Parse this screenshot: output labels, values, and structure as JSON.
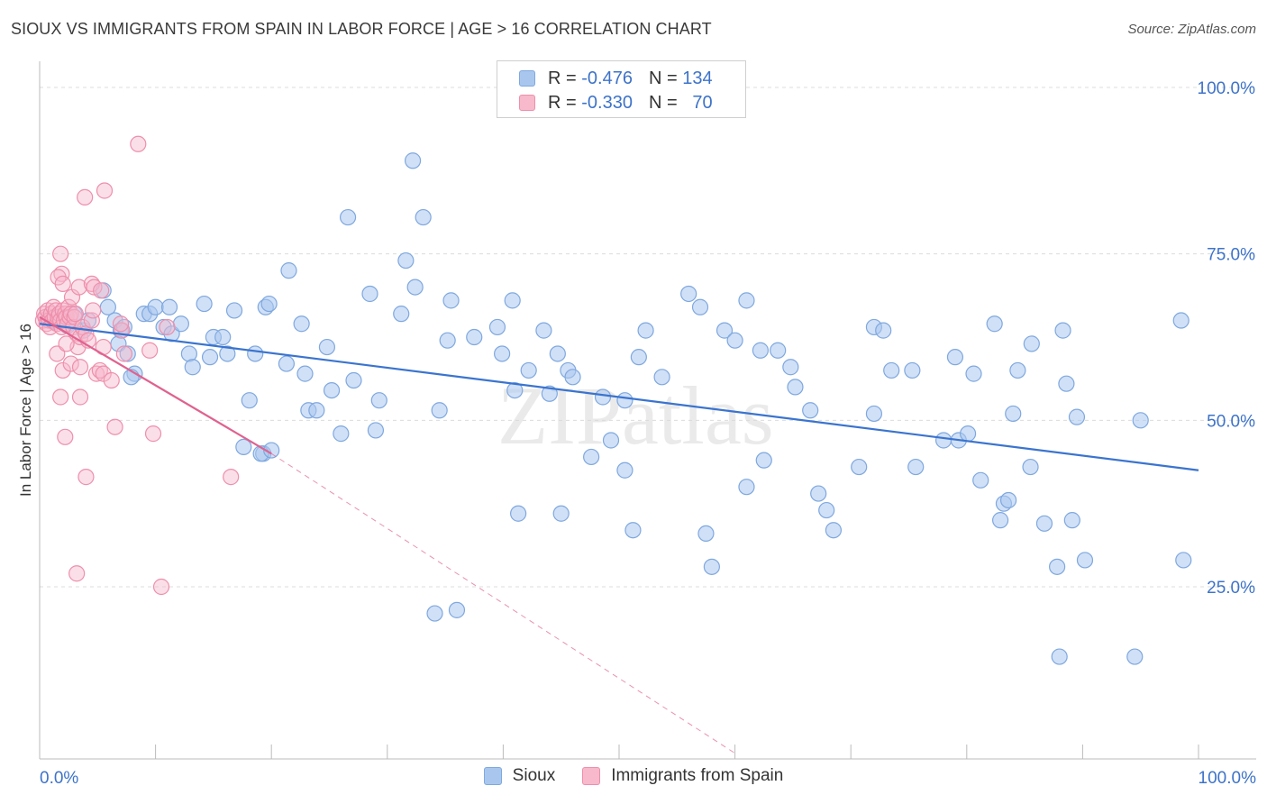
{
  "title": "SIOUX VS IMMIGRANTS FROM SPAIN IN LABOR FORCE | AGE > 16 CORRELATION CHART",
  "source": "Source: ZipAtlas.com",
  "watermark": "ZIPatlas",
  "legend_top": {
    "rows": [
      {
        "r_label": "R =",
        "r_value": "-0.476",
        "n_label": "N =",
        "n_value": "134",
        "color": "#a9c7ee",
        "border": "#7fa8df"
      },
      {
        "r_label": "R =",
        "r_value": "-0.330",
        "n_label": "N =",
        "n_value": "70",
        "color": "#f7b9cb",
        "border": "#ee8fac"
      }
    ]
  },
  "legend_bottom": [
    {
      "label": "Sioux",
      "color": "#a9c7ee",
      "border": "#7fa8df"
    },
    {
      "label": "Immigrants from Spain",
      "color": "#f7b9cb",
      "border": "#ee8fac"
    }
  ],
  "colors": {
    "sioux": "#3a74cf",
    "spain": "#e0628f",
    "grid": "#dcdcdc"
  },
  "chart_data": {
    "type": "scatter",
    "ylabel": "In Labor Force | Age > 16",
    "xlabel": "",
    "xlim": [
      0,
      100
    ],
    "ylim": [
      0,
      102
    ],
    "x_tick_labels": [
      {
        "value": 0,
        "label": "0.0%"
      },
      {
        "value": 100,
        "label": "100.0%"
      }
    ],
    "y_tick_labels": [
      {
        "value": 100,
        "label": "100.0%"
      },
      {
        "value": 75,
        "label": "75.0%"
      },
      {
        "value": 50,
        "label": "50.0%"
      },
      {
        "value": 25,
        "label": "25.0%"
      }
    ],
    "series": [
      {
        "name": "Sioux",
        "r": -0.476,
        "n": 134,
        "trend": {
          "x": [
            0,
            100
          ],
          "y": [
            64.5,
            42.5
          ],
          "dashed_extension": false
        },
        "points": [
          [
            0.8,
            65.5
          ],
          [
            1.2,
            64.8
          ],
          [
            1.8,
            65.5
          ],
          [
            2.4,
            64.2
          ],
          [
            3.0,
            66.0
          ],
          [
            3.8,
            63.5
          ],
          [
            4.2,
            65.0
          ],
          [
            5.5,
            69.5
          ],
          [
            5.9,
            67.0
          ],
          [
            6.5,
            65.0
          ],
          [
            7.0,
            63.5
          ],
          [
            6.8,
            61.5
          ],
          [
            7.3,
            64.0
          ],
          [
            7.6,
            60.0
          ],
          [
            8.2,
            57.0
          ],
          [
            7.9,
            56.5
          ],
          [
            9.0,
            66.0
          ],
          [
            9.5,
            66.0
          ],
          [
            10.0,
            67.0
          ],
          [
            11.2,
            67.0
          ],
          [
            10.7,
            64.0
          ],
          [
            11.4,
            63.0
          ],
          [
            12.2,
            64.5
          ],
          [
            12.9,
            60.0
          ],
          [
            13.2,
            58.0
          ],
          [
            14.2,
            67.5
          ],
          [
            14.7,
            59.5
          ],
          [
            15.0,
            62.5
          ],
          [
            15.8,
            62.5
          ],
          [
            16.2,
            60.0
          ],
          [
            16.8,
            66.5
          ],
          [
            17.6,
            46.0
          ],
          [
            18.1,
            53.0
          ],
          [
            18.6,
            60.0
          ],
          [
            19.3,
            45.0
          ],
          [
            19.1,
            45.0
          ],
          [
            20.0,
            45.5
          ],
          [
            19.5,
            67.0
          ],
          [
            19.8,
            67.5
          ],
          [
            21.5,
            72.5
          ],
          [
            21.3,
            58.5
          ],
          [
            22.6,
            64.5
          ],
          [
            22.9,
            57.0
          ],
          [
            23.2,
            51.5
          ],
          [
            23.9,
            51.5
          ],
          [
            24.8,
            61.0
          ],
          [
            25.2,
            54.5
          ],
          [
            26.0,
            48.0
          ],
          [
            27.1,
            56.0
          ],
          [
            26.6,
            80.5
          ],
          [
            28.5,
            69.0
          ],
          [
            29.3,
            53.0
          ],
          [
            29.0,
            48.5
          ],
          [
            31.2,
            66.0
          ],
          [
            31.6,
            74.0
          ],
          [
            32.4,
            70.0
          ],
          [
            32.2,
            89.0
          ],
          [
            33.1,
            80.5
          ],
          [
            34.1,
            21.0
          ],
          [
            34.5,
            51.5
          ],
          [
            35.2,
            62.0
          ],
          [
            35.5,
            68.0
          ],
          [
            37.5,
            62.5
          ],
          [
            39.5,
            64.0
          ],
          [
            39.9,
            60.0
          ],
          [
            40.8,
            68.0
          ],
          [
            41.0,
            54.5
          ],
          [
            41.3,
            36.0
          ],
          [
            42.2,
            57.5
          ],
          [
            43.5,
            63.5
          ],
          [
            44.0,
            54.0
          ],
          [
            44.7,
            60.0
          ],
          [
            45.0,
            36.0
          ],
          [
            45.6,
            57.5
          ],
          [
            46.0,
            56.5
          ],
          [
            47.6,
            44.5
          ],
          [
            48.6,
            53.5
          ],
          [
            49.3,
            47.0
          ],
          [
            50.5,
            42.5
          ],
          [
            50.5,
            53.0
          ],
          [
            51.2,
            33.5
          ],
          [
            51.7,
            59.5
          ],
          [
            52.3,
            63.5
          ],
          [
            53.7,
            56.5
          ],
          [
            56.0,
            69.0
          ],
          [
            57.0,
            67.0
          ],
          [
            57.5,
            33.0
          ],
          [
            58.0,
            28.0
          ],
          [
            59.1,
            63.5
          ],
          [
            61.0,
            68.0
          ],
          [
            61.0,
            40.0
          ],
          [
            62.2,
            60.5
          ],
          [
            62.5,
            44.0
          ],
          [
            63.7,
            60.5
          ],
          [
            64.8,
            58.0
          ],
          [
            65.2,
            55.0
          ],
          [
            66.5,
            51.5
          ],
          [
            67.2,
            39.0
          ],
          [
            67.9,
            36.5
          ],
          [
            68.5,
            33.5
          ],
          [
            70.7,
            43.0
          ],
          [
            72.0,
            64.0
          ],
          [
            72.8,
            63.5
          ],
          [
            72.0,
            51.0
          ],
          [
            73.5,
            57.5
          ],
          [
            75.3,
            57.5
          ],
          [
            75.6,
            43.0
          ],
          [
            78.0,
            47.0
          ],
          [
            79.0,
            59.5
          ],
          [
            79.3,
            47.0
          ],
          [
            80.1,
            48.0
          ],
          [
            80.6,
            57.0
          ],
          [
            81.2,
            41.0
          ],
          [
            82.4,
            64.5
          ],
          [
            82.9,
            35.0
          ],
          [
            83.2,
            37.5
          ],
          [
            83.6,
            38.0
          ],
          [
            84.0,
            51.0
          ],
          [
            84.4,
            57.5
          ],
          [
            85.5,
            43.0
          ],
          [
            85.6,
            61.5
          ],
          [
            86.7,
            34.5
          ],
          [
            87.8,
            28.0
          ],
          [
            88.6,
            55.5
          ],
          [
            89.1,
            35.0
          ],
          [
            89.5,
            50.5
          ],
          [
            90.2,
            29.0
          ],
          [
            88.0,
            14.5
          ],
          [
            88.3,
            63.5
          ],
          [
            94.5,
            14.5
          ],
          [
            95.0,
            50.0
          ],
          [
            98.5,
            65.0
          ],
          [
            98.7,
            29.0
          ],
          [
            60.0,
            62.0
          ],
          [
            36.0,
            21.5
          ]
        ]
      },
      {
        "name": "Immigrants from Spain",
        "r": -0.33,
        "n": 70,
        "trend": {
          "x": [
            0,
            20
          ],
          "y": [
            65.5,
            45.0
          ],
          "dashed_extension": {
            "x": [
              20,
              60
            ],
            "y": [
              45.0,
              0.0
            ]
          }
        },
        "points": [
          [
            0.3,
            65.0
          ],
          [
            0.4,
            66.0
          ],
          [
            0.5,
            65.5
          ],
          [
            0.6,
            64.5
          ],
          [
            0.7,
            66.5
          ],
          [
            0.8,
            65.0
          ],
          [
            0.9,
            64.0
          ],
          [
            1.0,
            66.0
          ],
          [
            1.1,
            65.0
          ],
          [
            1.2,
            67.0
          ],
          [
            1.3,
            65.5
          ],
          [
            1.4,
            66.5
          ],
          [
            1.5,
            64.5
          ],
          [
            1.6,
            65.5
          ],
          [
            1.7,
            66.0
          ],
          [
            1.8,
            65.0
          ],
          [
            1.9,
            64.0
          ],
          [
            2.0,
            66.5
          ],
          [
            2.1,
            65.0
          ],
          [
            2.2,
            66.0
          ],
          [
            2.3,
            65.5
          ],
          [
            2.4,
            64.5
          ],
          [
            2.5,
            67.0
          ],
          [
            2.6,
            65.5
          ],
          [
            2.7,
            66.0
          ],
          [
            2.8,
            68.5
          ],
          [
            2.9,
            64.0
          ],
          [
            3.0,
            65.5
          ],
          [
            3.1,
            66.0
          ],
          [
            3.2,
            63.0
          ],
          [
            3.3,
            61.0
          ],
          [
            3.5,
            62.5
          ],
          [
            3.7,
            64.0
          ],
          [
            4.0,
            63.0
          ],
          [
            4.2,
            62.0
          ],
          [
            4.5,
            65.0
          ],
          [
            1.8,
            75.0
          ],
          [
            1.9,
            72.0
          ],
          [
            1.6,
            71.5
          ],
          [
            2.0,
            70.5
          ],
          [
            3.4,
            70.0
          ],
          [
            4.5,
            70.5
          ],
          [
            4.7,
            70.0
          ],
          [
            5.3,
            69.5
          ],
          [
            4.6,
            66.5
          ],
          [
            1.5,
            60.0
          ],
          [
            2.0,
            57.5
          ],
          [
            2.3,
            61.5
          ],
          [
            2.7,
            58.5
          ],
          [
            3.5,
            58.0
          ],
          [
            1.8,
            53.5
          ],
          [
            3.5,
            53.5
          ],
          [
            2.2,
            47.5
          ],
          [
            4.0,
            41.5
          ],
          [
            4.9,
            57.0
          ],
          [
            5.2,
            57.5
          ],
          [
            5.5,
            57.0
          ],
          [
            6.2,
            56.0
          ],
          [
            5.5,
            61.0
          ],
          [
            6.5,
            49.0
          ],
          [
            7.1,
            63.5
          ],
          [
            7.3,
            60.0
          ],
          [
            7.0,
            64.5
          ],
          [
            3.2,
            27.0
          ],
          [
            3.9,
            83.5
          ],
          [
            5.6,
            84.5
          ],
          [
            8.5,
            91.5
          ],
          [
            9.5,
            60.5
          ],
          [
            9.8,
            48.0
          ],
          [
            10.5,
            25.0
          ],
          [
            11.0,
            64.0
          ],
          [
            16.5,
            41.5
          ]
        ]
      }
    ]
  }
}
